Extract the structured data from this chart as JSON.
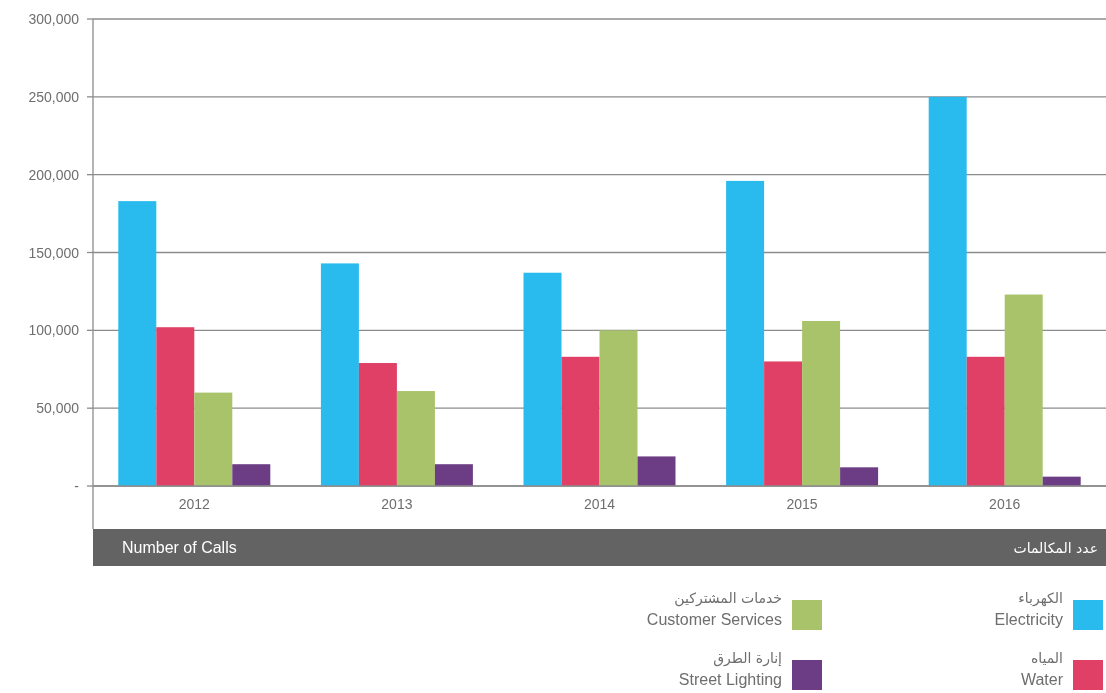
{
  "chart_data": {
    "type": "bar",
    "title": "Number of Calls",
    "subtitle": "عدد المكالمات",
    "categories": [
      "2012",
      "2013",
      "2014",
      "2015",
      "2016"
    ],
    "series": [
      {
        "name": "Electricity",
        "color": "#29bbed",
        "values": [
          183000,
          143000,
          137000,
          196000,
          250000
        ]
      },
      {
        "name": "Water",
        "color": "#e04065",
        "values": [
          102000,
          79000,
          83000,
          80000,
          83000
        ]
      },
      {
        "name": "Customer Services",
        "color": "#a9c36a",
        "values": [
          60000,
          61000,
          100000,
          106000,
          123000
        ]
      },
      {
        "name": "Street Lighting",
        "color": "#6c3d84",
        "values": [
          14000,
          14000,
          19000,
          12000,
          6000
        ]
      }
    ],
    "annotations": [
      "الكهرباء",
      "المياه",
      "خدمات المشتركين",
      "إنارة الطرق"
    ],
    "ylim": [
      0,
      300000
    ],
    "yticks": [
      {
        "value": 0,
        "label": "-"
      },
      {
        "value": 50000,
        "label": "50,000"
      },
      {
        "value": 100000,
        "label": "100,000"
      },
      {
        "value": 150000,
        "label": "150,000"
      },
      {
        "value": 200000,
        "label": "200,000"
      },
      {
        "value": 250000,
        "label": "250,000"
      },
      {
        "value": 300000,
        "label": "300,000"
      }
    ],
    "grid": "y",
    "legend": "bottom right"
  }
}
